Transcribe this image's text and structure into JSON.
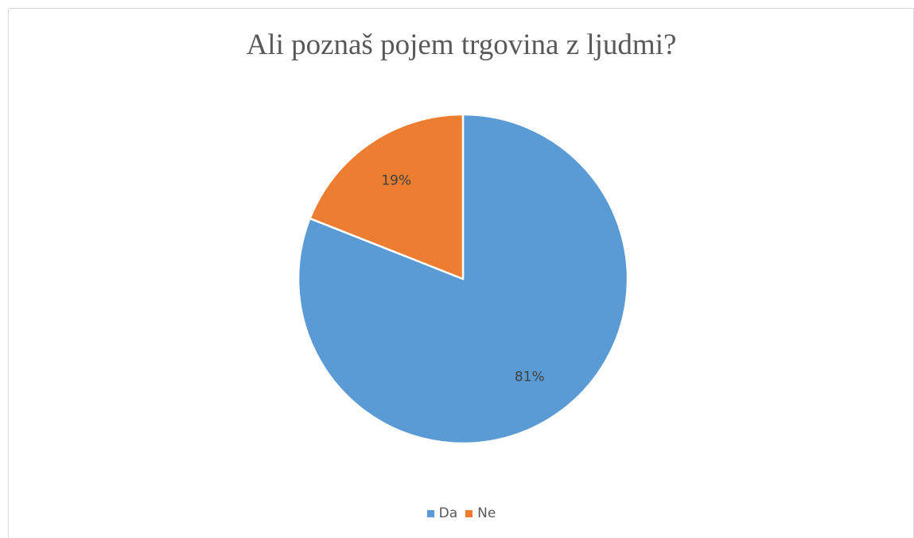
{
  "chart_data": {
    "type": "pie",
    "title": "Ali poznaš pojem trgovina z ljudmi?",
    "categories": [
      "Da",
      "Ne"
    ],
    "values": [
      81,
      19
    ],
    "data_labels": [
      "81%",
      "19%"
    ],
    "colors": [
      "#5b9bd5",
      "#ed7d31"
    ],
    "start_angle_deg": 0,
    "direction": "clockwise",
    "legend": "bottom"
  }
}
